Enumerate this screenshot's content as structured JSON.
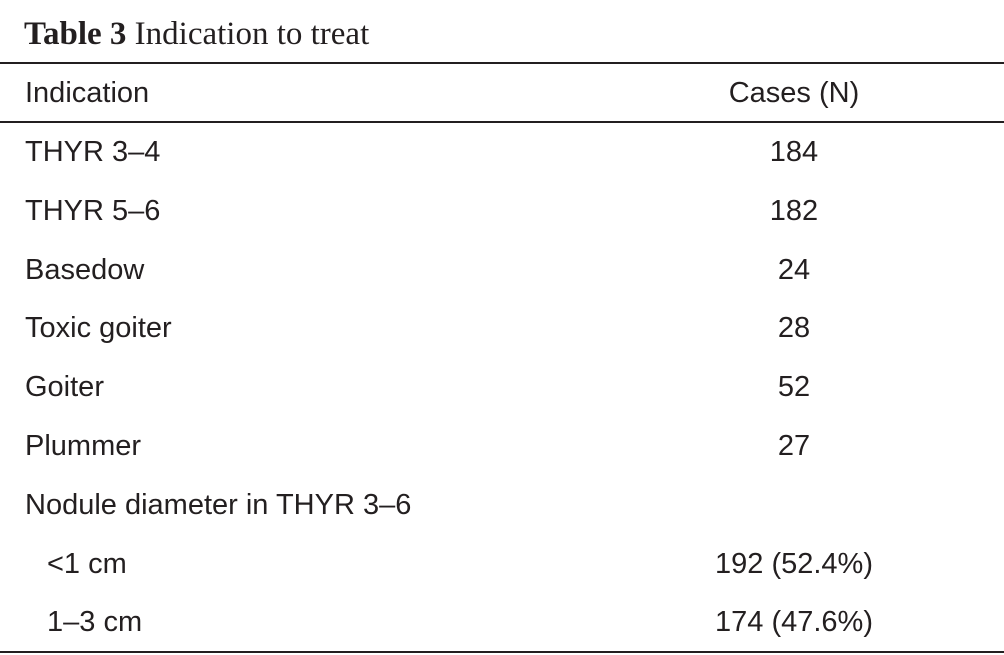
{
  "caption": {
    "label": "Table 3",
    "title": "Indication to treat"
  },
  "table": {
    "headers": [
      "Indication",
      "Cases (N)"
    ],
    "rows": [
      {
        "indication": "THYR 3–4",
        "cases": "184",
        "indent": false
      },
      {
        "indication": "THYR 5–6",
        "cases": "182",
        "indent": false
      },
      {
        "indication": "Basedow",
        "cases": "24",
        "indent": false
      },
      {
        "indication": "Toxic goiter",
        "cases": "28",
        "indent": false
      },
      {
        "indication": "Goiter",
        "cases": "52",
        "indent": false
      },
      {
        "indication": "Plummer",
        "cases": "27",
        "indent": false
      },
      {
        "indication": "Nodule diameter in THYR 3–6",
        "cases": "",
        "indent": false
      },
      {
        "indication": "<1 cm",
        "cases": "192 (52.4%)",
        "indent": true
      },
      {
        "indication": "1–3 cm",
        "cases": "174 (47.6%)",
        "indent": true
      }
    ]
  }
}
